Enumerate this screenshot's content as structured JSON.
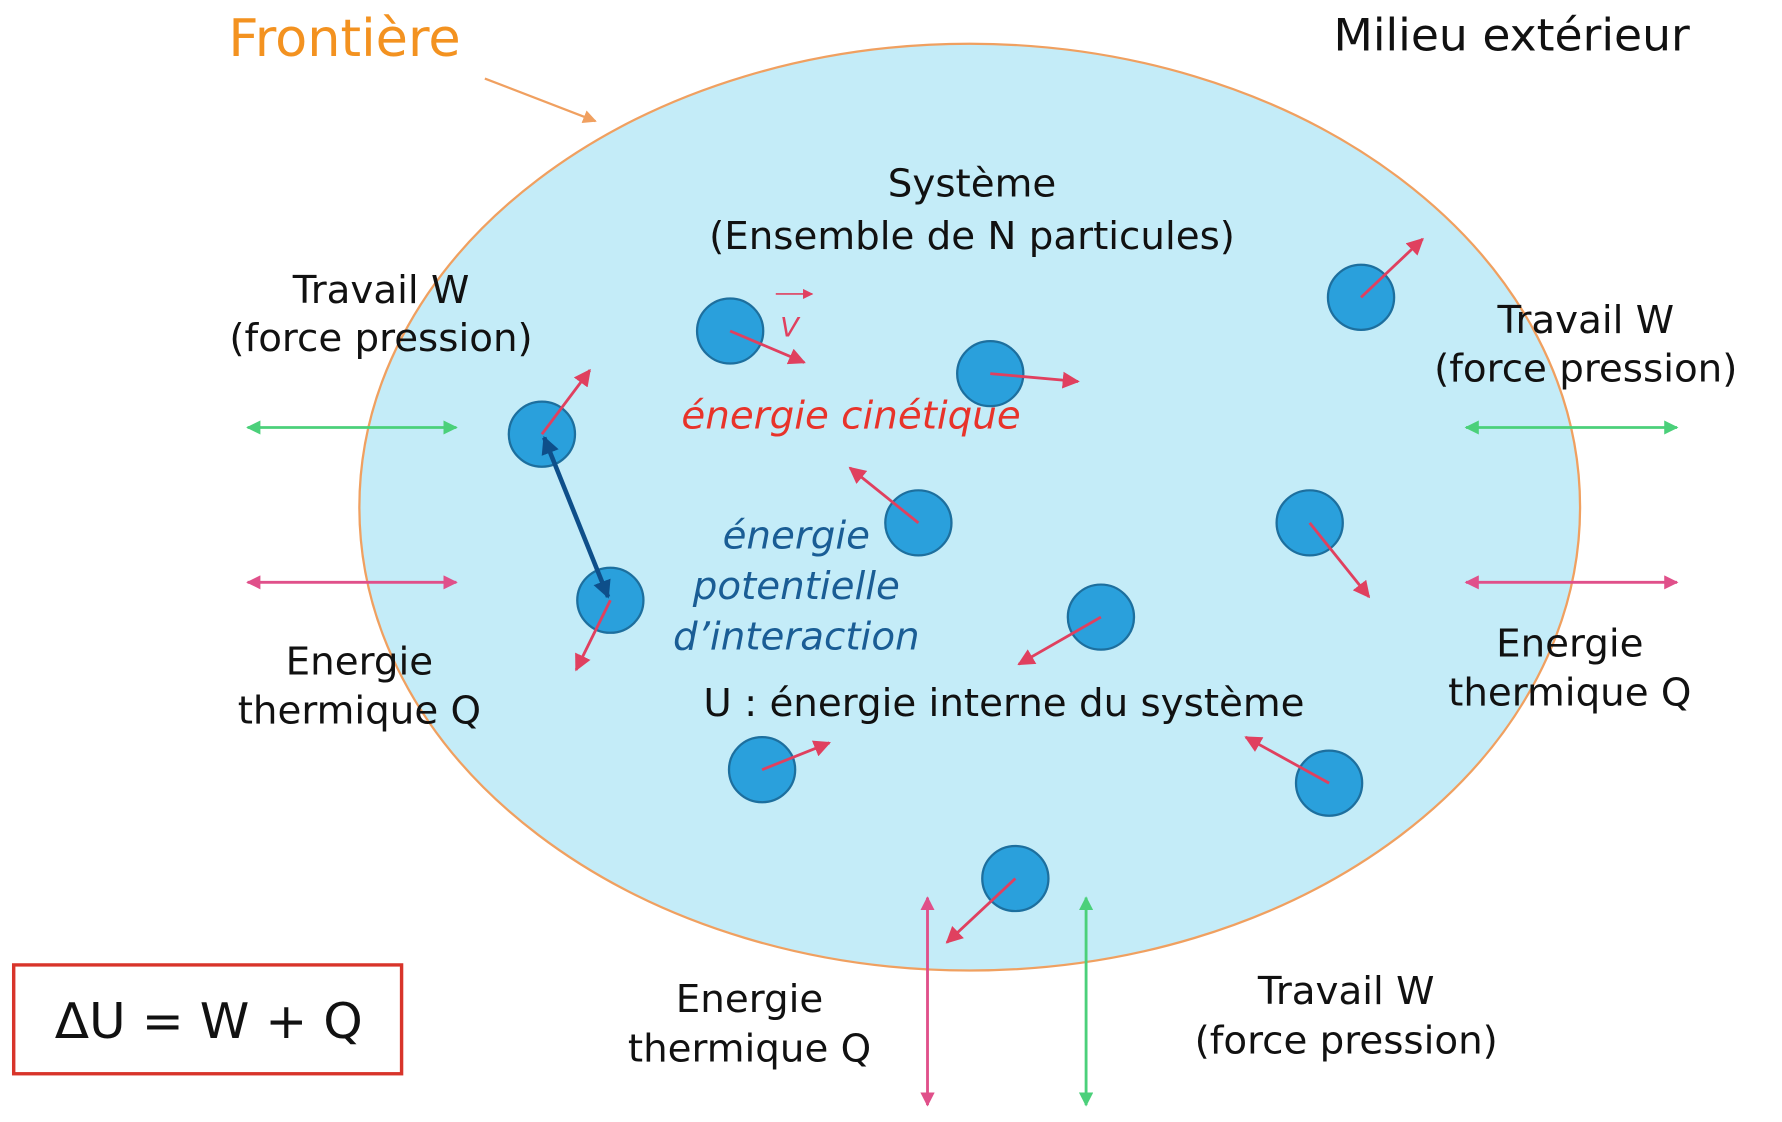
{
  "boundary_label": "Frontière",
  "outside_label": "Milieu extérieur",
  "system": {
    "title": "Système",
    "subtitle": "(Ensemble de N particules)"
  },
  "velocity_label": "V",
  "kinetic_energy": "énergie cinétique",
  "potential_energy": [
    "énergie",
    "potentielle",
    "d’interaction"
  ],
  "internal_energy": "U : énergie interne du système",
  "exchanges": {
    "left": {
      "work": [
        "Travail W",
        "(force pression)"
      ],
      "heat": [
        "Energie",
        "thermique Q"
      ]
    },
    "right": {
      "work": [
        "Travail W",
        "(force pression)"
      ],
      "heat": [
        "Energie",
        "thermique Q"
      ]
    },
    "bottom": {
      "work": [
        "Travail W",
        "(force pression)"
      ],
      "heat": [
        "Energie",
        "thermique Q"
      ]
    }
  },
  "equation": "ΔU =  W + Q"
}
